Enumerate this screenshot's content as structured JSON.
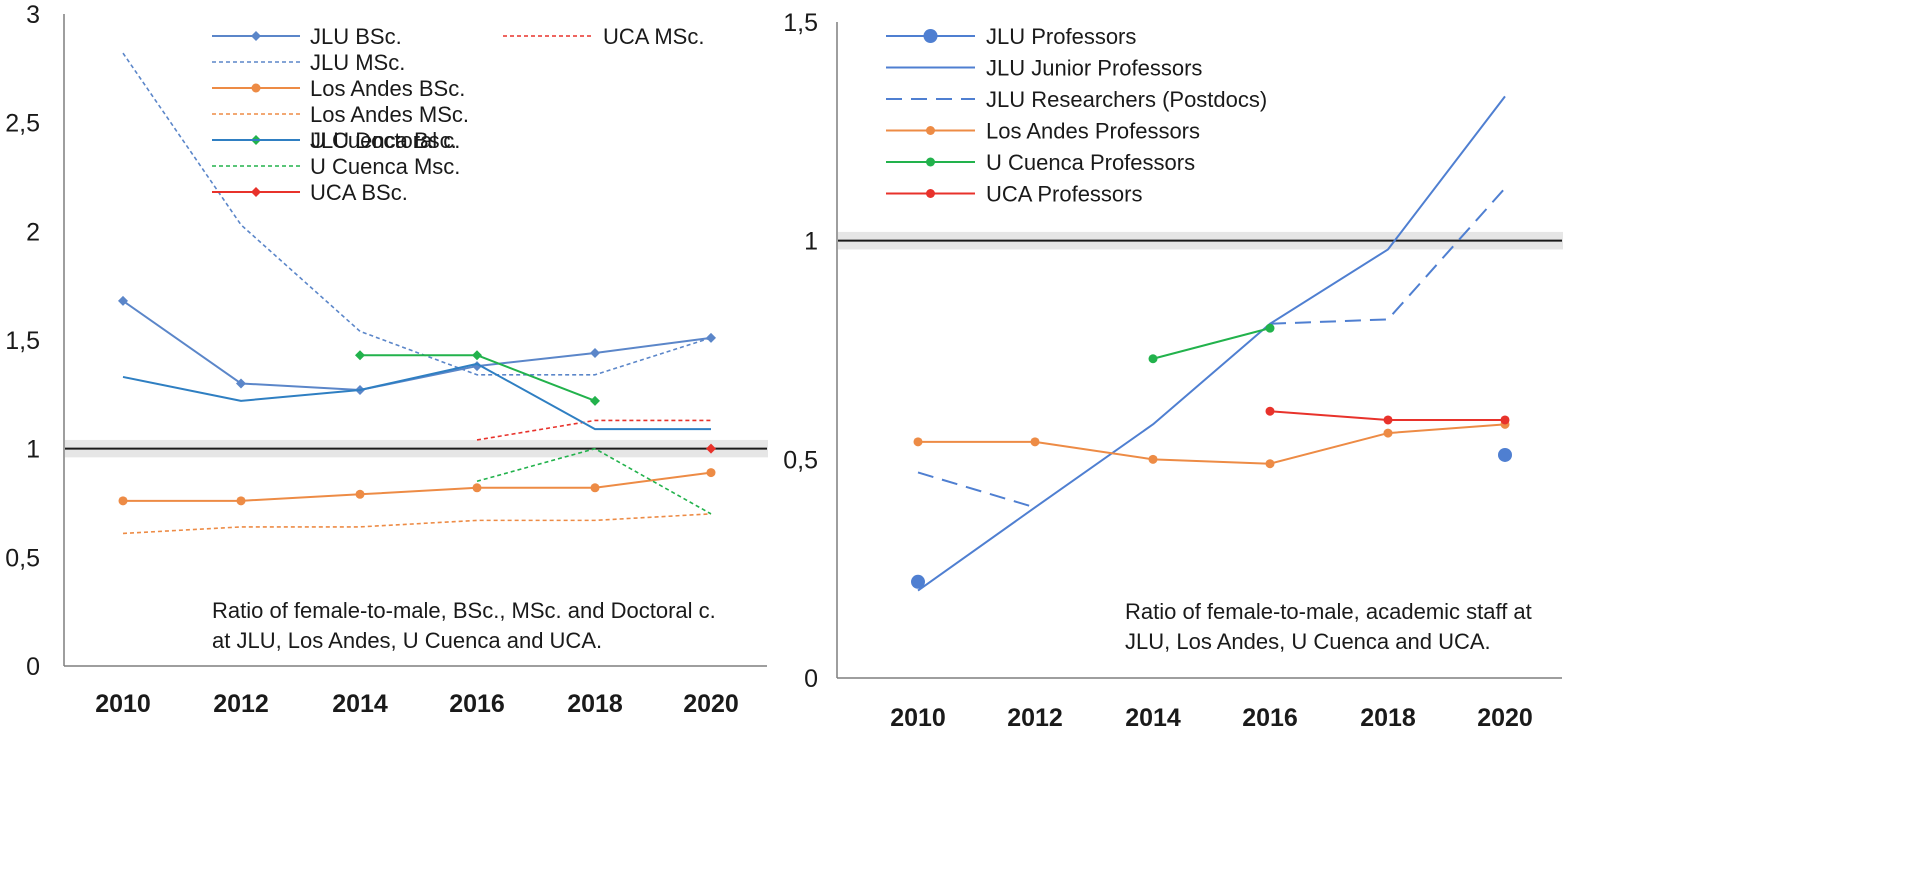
{
  "chart_data": [
    {
      "type": "line",
      "title": "Ratio of female-to-male, BSc., MSc. and Doctoral c. at JLU, Los Andes, U Cuenca and UCA.",
      "annotation_lines": [
        "Ratio of female-to-male, BSc., MSc. and Doctoral c.",
        "at JLU, Los Andes, U Cuenca and UCA."
      ],
      "annotation_position": "bottom-right",
      "xlabel": "",
      "ylabel": "",
      "x": [
        2010,
        2012,
        2014,
        2016,
        2018,
        2020
      ],
      "x_tick_labels": [
        "2010",
        "2012",
        "2014",
        "2016",
        "2018",
        "2020"
      ],
      "ylim": [
        0,
        3
      ],
      "y_ticks": [
        0,
        0.5,
        1,
        1.5,
        2,
        2.5,
        3
      ],
      "y_tick_labels": [
        "0",
        "0,5",
        "1",
        "1,5",
        "2",
        "2,5",
        "3"
      ],
      "reference_line": {
        "y": 1,
        "band": [
          0.96,
          1.04
        ]
      },
      "legend_position": "top",
      "series": [
        {
          "name": "JLU BSc.",
          "color": "#5B86C9",
          "dash": "solid",
          "marker": "diamond",
          "x": [
            2010,
            2012,
            2014,
            2016,
            2018,
            2020
          ],
          "values": [
            1.68,
            1.3,
            1.27,
            1.38,
            1.44,
            1.51
          ]
        },
        {
          "name": "JLU MSc.",
          "color": "#5B86C9",
          "dash": "dotted",
          "marker": "none",
          "x": [
            2010,
            2012,
            2014,
            2016,
            2018,
            2020
          ],
          "values": [
            2.82,
            2.03,
            1.54,
            1.34,
            1.34,
            1.51
          ]
        },
        {
          "name": "Los Andes BSc.",
          "color": "#ED8B45",
          "dash": "solid",
          "marker": "circle",
          "x": [
            2010,
            2012,
            2014,
            2016,
            2018,
            2020
          ],
          "values": [
            0.76,
            0.76,
            0.79,
            0.82,
            0.82,
            0.89
          ]
        },
        {
          "name": "Los Andes MSc.",
          "color": "#ED8B45",
          "dash": "dotted",
          "marker": "none",
          "x": [
            2010,
            2012,
            2014,
            2016,
            2018,
            2020
          ],
          "values": [
            0.61,
            0.64,
            0.64,
            0.67,
            0.67,
            0.7
          ]
        },
        {
          "name": "U Cuenca Bsc.",
          "color": "#22B24C",
          "dash": "solid",
          "marker": "diamond",
          "x": [
            2014,
            2016,
            2018
          ],
          "values": [
            1.43,
            1.43,
            1.22
          ]
        },
        {
          "name": "U Cuenca Msc.",
          "color": "#22B24C",
          "dash": "dotted",
          "marker": "none",
          "x": [
            2016,
            2018,
            2020
          ],
          "values": [
            0.85,
            1.0,
            0.7
          ]
        },
        {
          "name": "UCA BSc.",
          "color": "#E8322B",
          "dash": "solid",
          "marker": "diamond",
          "x": [
            2020
          ],
          "values": [
            1.0
          ]
        },
        {
          "name": "UCA MSc.",
          "color": "#E8322B",
          "dash": "dotted",
          "marker": "none",
          "x": [
            2016,
            2018,
            2020
          ],
          "values": [
            1.04,
            1.13,
            1.13
          ]
        },
        {
          "name": "JLU Doctoral c.",
          "color": "#2F7FC2",
          "dash": "solid",
          "marker": "none",
          "x": [
            2010,
            2012,
            2014,
            2016,
            2018,
            2020
          ],
          "values": [
            1.33,
            1.22,
            1.27,
            1.39,
            1.09,
            1.09
          ]
        }
      ]
    },
    {
      "type": "line",
      "title": "Ratio of female-to-male, academic staff at JLU, Los Andes, U Cuenca and UCA.",
      "annotation_lines": [
        "Ratio of female-to-male, academic staff at",
        "JLU, Los Andes, U Cuenca and UCA."
      ],
      "annotation_position": "bottom-right",
      "xlabel": "",
      "ylabel": "",
      "x": [
        2010,
        2012,
        2014,
        2016,
        2018,
        2020
      ],
      "x_tick_labels": [
        "2010",
        "2012",
        "2014",
        "2016",
        "2018",
        "2020"
      ],
      "ylim": [
        0,
        1.5
      ],
      "y_ticks": [
        0,
        0.5,
        1,
        1.5
      ],
      "y_tick_labels": [
        "0",
        "0,5",
        "1",
        "1,5"
      ],
      "reference_line": {
        "y": 1,
        "band": [
          0.98,
          1.02
        ]
      },
      "legend_position": "top-left",
      "series": [
        {
          "name": "JLU Professors",
          "color": "#4F7FD1",
          "dash": "solid",
          "marker": "big-circle",
          "x": [
            2010,
            2020
          ],
          "values": [
            0.22,
            0.51
          ]
        },
        {
          "name": "JLU Junior Professors",
          "color": "#4F7FD1",
          "dash": "solid",
          "marker": "none",
          "x": [
            2010,
            2012,
            2014,
            2016,
            2018,
            2020
          ],
          "values": [
            0.2,
            0.39,
            0.58,
            0.81,
            0.98,
            1.33
          ]
        },
        {
          "name": "JLU Researchers (Postdocs)",
          "color": "#4F7FD1",
          "dash": "dashed",
          "marker": "none",
          "x": [
            2010,
            2012,
            2014,
            2016,
            2018,
            2020
          ],
          "values": [
            0.47,
            0.39,
            null,
            0.81,
            0.82,
            1.12
          ]
        },
        {
          "name": "Los Andes Professors",
          "color": "#ED8B45",
          "dash": "solid",
          "marker": "circle",
          "x": [
            2010,
            2012,
            2014,
            2016,
            2018,
            2020
          ],
          "values": [
            0.54,
            0.54,
            0.5,
            0.49,
            0.56,
            0.58
          ]
        },
        {
          "name": "U Cuenca Professors",
          "color": "#22B24C",
          "dash": "solid",
          "marker": "circle",
          "x": [
            2014,
            2016
          ],
          "values": [
            0.73,
            0.8
          ]
        },
        {
          "name": "UCA Professors",
          "color": "#E8322B",
          "dash": "solid",
          "marker": "circle",
          "x": [
            2016,
            2018,
            2020
          ],
          "values": [
            0.61,
            0.59,
            0.59
          ]
        }
      ]
    }
  ]
}
